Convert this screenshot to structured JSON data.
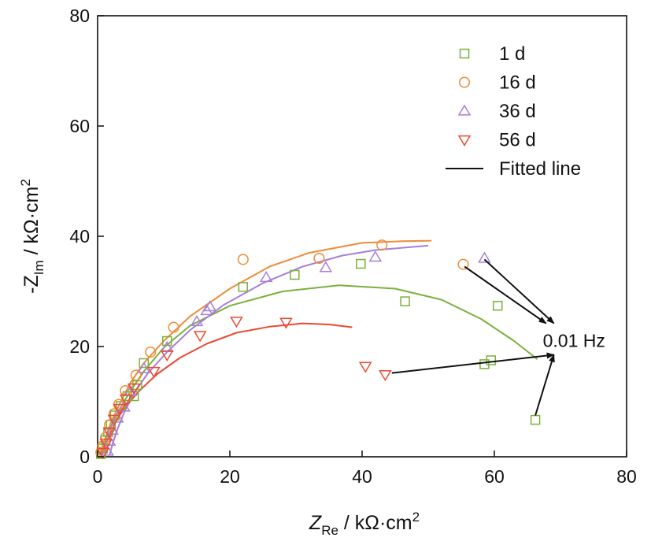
{
  "chart_data": {
    "type": "scatter",
    "xlabel_main": "Z",
    "xlabel_sub": "Re",
    "xlabel_unit": " / kΩ·cm",
    "xlabel_sup": "2",
    "ylabel_pre": "-Z",
    "ylabel_sub": "Im",
    "ylabel_unit": " / kΩ·cm",
    "ylabel_sup": "2",
    "xlim": [
      0,
      80
    ],
    "ylim": [
      0,
      80
    ],
    "xticks": [
      0,
      20,
      40,
      60,
      80
    ],
    "yticks": [
      0,
      20,
      40,
      60,
      80
    ],
    "grid": false,
    "legend_position": "top-right",
    "annotation": {
      "text": "0.01 Hz",
      "target": [
        69,
        18.5
      ],
      "pointers_from": [
        [
          55.5,
          34.5
        ],
        [
          58.5,
          35.8
        ],
        [
          44.5,
          15.2
        ],
        [
          66.2,
          7.5
        ]
      ]
    },
    "series": [
      {
        "name": "1 d",
        "marker": "square",
        "color": "#7bb03c",
        "points": [
          [
            0.5,
            0.5
          ],
          [
            0.8,
            1.5
          ],
          [
            1.2,
            3
          ],
          [
            1.6,
            4.5
          ],
          [
            2,
            5.8
          ],
          [
            2.6,
            7.5
          ],
          [
            3.5,
            9.2
          ],
          [
            4.5,
            11
          ],
          [
            5.5,
            11
          ],
          [
            6,
            13
          ],
          [
            7,
            17
          ],
          [
            10.5,
            21
          ],
          [
            22,
            30.8
          ],
          [
            29.8,
            33
          ],
          [
            39.8,
            35
          ],
          [
            46.5,
            28.2
          ],
          [
            58.5,
            16.8
          ],
          [
            59.5,
            17.5
          ],
          [
            60.5,
            27.4
          ],
          [
            66.2,
            6.7
          ]
        ],
        "fit": [
          [
            0.3,
            0.2
          ],
          [
            1,
            2.5
          ],
          [
            2,
            5.5
          ],
          [
            3.5,
            9
          ],
          [
            5,
            12
          ],
          [
            7,
            15.5
          ],
          [
            10,
            19.8
          ],
          [
            14,
            23.8
          ],
          [
            20,
            27.4
          ],
          [
            28,
            30
          ],
          [
            36.5,
            31.1
          ],
          [
            45,
            30.5
          ],
          [
            52,
            28.5
          ],
          [
            58,
            25
          ],
          [
            63,
            21
          ],
          [
            66.5,
            17.7
          ]
        ]
      },
      {
        "name": "16 d",
        "marker": "circle",
        "color": "#ee8c38",
        "points": [
          [
            0.5,
            0.8
          ],
          [
            0.8,
            2
          ],
          [
            1.2,
            3.5
          ],
          [
            1.8,
            5.8
          ],
          [
            2.5,
            7.8
          ],
          [
            3.2,
            9.5
          ],
          [
            4.2,
            12
          ],
          [
            5.8,
            14.8
          ],
          [
            8,
            19
          ],
          [
            11.5,
            23.5
          ],
          [
            22,
            35.8
          ],
          [
            33.5,
            36
          ],
          [
            43,
            38.4
          ],
          [
            55.3,
            34.9
          ]
        ],
        "fit": [
          [
            0.3,
            0.3
          ],
          [
            1,
            2.8
          ],
          [
            2,
            6.2
          ],
          [
            3.5,
            10
          ],
          [
            5,
            13.5
          ],
          [
            7,
            17
          ],
          [
            10,
            21
          ],
          [
            14,
            25.5
          ],
          [
            20,
            30.5
          ],
          [
            26,
            34.5
          ],
          [
            32,
            37
          ],
          [
            40,
            38.8
          ],
          [
            46,
            39.1
          ],
          [
            50.5,
            39.2
          ]
        ]
      },
      {
        "name": "36 d",
        "marker": "triangle-up",
        "color": "#a77fd6",
        "points": [
          [
            1.5,
            1
          ],
          [
            1.8,
            2.8
          ],
          [
            2.2,
            4.8
          ],
          [
            3,
            7
          ],
          [
            4,
            9
          ],
          [
            5,
            11.8
          ],
          [
            7,
            16
          ],
          [
            10.5,
            19.8
          ],
          [
            15,
            24.5
          ],
          [
            16.5,
            26.5
          ],
          [
            17,
            27.2
          ],
          [
            25.5,
            32.5
          ],
          [
            34.5,
            34.3
          ],
          [
            42,
            36.2
          ],
          [
            58.5,
            36
          ]
        ],
        "fit": [
          [
            1.8,
            0.3
          ],
          [
            2.3,
            2.5
          ],
          [
            3,
            5
          ],
          [
            4,
            8
          ],
          [
            5.5,
            11.5
          ],
          [
            7.5,
            15
          ],
          [
            10.5,
            19
          ],
          [
            14,
            23
          ],
          [
            19,
            27.5
          ],
          [
            25,
            31.5
          ],
          [
            31,
            34.5
          ],
          [
            37,
            36.5
          ],
          [
            42,
            37.5
          ],
          [
            50,
            38.3
          ]
        ]
      },
      {
        "name": "56 d",
        "marker": "triangle-down",
        "color": "#ea4a32",
        "points": [
          [
            0.8,
            0.8
          ],
          [
            1.3,
            2.5
          ],
          [
            1.8,
            4.5
          ],
          [
            2.5,
            6.8
          ],
          [
            3.3,
            8.8
          ],
          [
            4.3,
            10.5
          ],
          [
            5.5,
            12.5
          ],
          [
            8.5,
            15.5
          ],
          [
            10.5,
            18.5
          ],
          [
            15.5,
            22
          ],
          [
            21,
            24.6
          ],
          [
            28.5,
            24.4
          ],
          [
            40.5,
            16.4
          ],
          [
            43.5,
            14.9
          ]
        ],
        "fit": [
          [
            0.5,
            0.3
          ],
          [
            1.2,
            2.3
          ],
          [
            2,
            4.5
          ],
          [
            3,
            7
          ],
          [
            4.5,
            9.5
          ],
          [
            6.5,
            12.2
          ],
          [
            9,
            15
          ],
          [
            12.5,
            18
          ],
          [
            16.5,
            20.5
          ],
          [
            21,
            22.5
          ],
          [
            26,
            23.6
          ],
          [
            31,
            24.2
          ],
          [
            35,
            24
          ],
          [
            38.5,
            23.5
          ]
        ]
      }
    ],
    "legend_fit_label": "Fitted line"
  }
}
